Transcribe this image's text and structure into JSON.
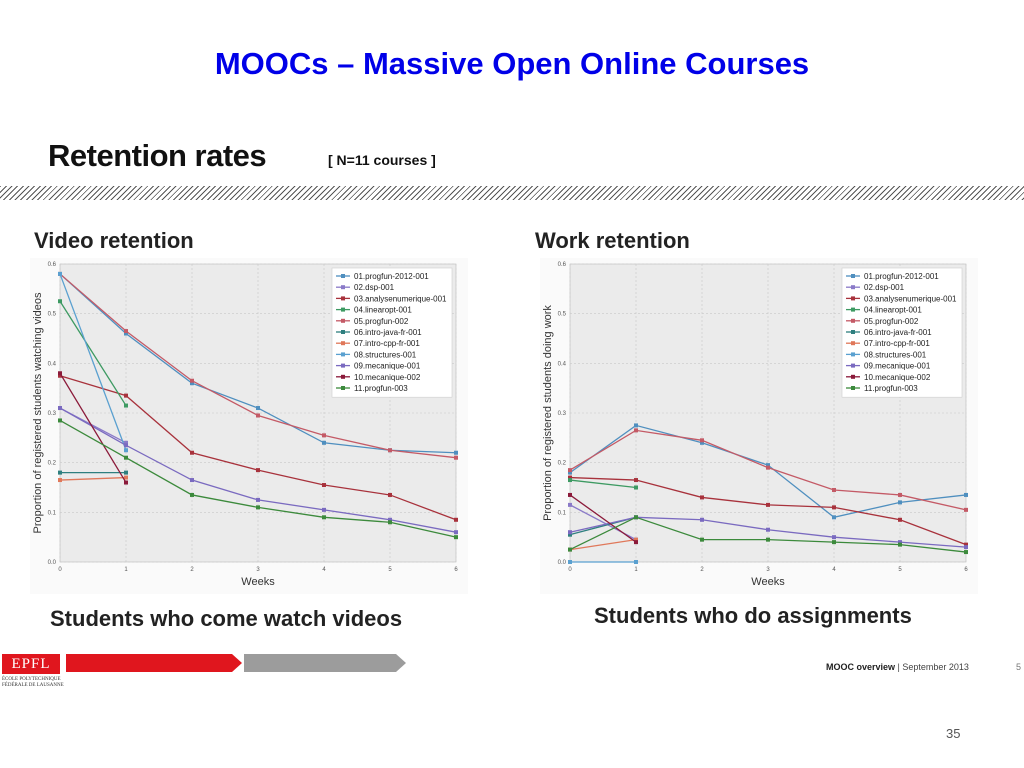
{
  "slide": {
    "title": "MOOCs – Massive Open Online Courses",
    "section_title": "Retention rates",
    "section_subtitle": "[ N=11 courses ]",
    "page_number": "35"
  },
  "footer": {
    "logo_text": "EPFL",
    "logo_line1": "ÉCOLE POLYTECHNIQUE",
    "logo_line2": "FÉDÉRALE DE LAUSANNE",
    "label_bold": "MOOC overview",
    "label_rest": " | September 2013",
    "slide_ref": "5"
  },
  "colors": {
    "title_blue": "#0000e8",
    "epfl_red": "#e0161e",
    "plot_bg": "#ebebeb",
    "grid": "#c8c8c8"
  },
  "chart_data": [
    {
      "type": "line",
      "title": "Video retention",
      "caption": "Students who come watch videos",
      "xlabel": "Weeks",
      "ylabel": "Proportion of registered students watching videos",
      "xlim": [
        0,
        6
      ],
      "ylim": [
        0.0,
        0.6
      ],
      "xticks": [
        "0",
        "1",
        "2",
        "3",
        "4",
        "5",
        "6"
      ],
      "yticks": [
        "0.0",
        "0.1",
        "0.2",
        "0.3",
        "0.4",
        "0.5",
        "0.6"
      ],
      "grid": true,
      "legend_position": "top-right",
      "series": [
        {
          "name": "01.progfun-2012-001",
          "color": "#4f8fbf",
          "x": [
            0,
            1,
            2,
            3,
            4,
            5,
            6
          ],
          "y": [
            0.58,
            0.46,
            0.36,
            0.31,
            0.24,
            0.225,
            0.22
          ]
        },
        {
          "name": "02.dsp-001",
          "color": "#8a7ac8",
          "x": [
            0,
            1
          ],
          "y": [
            0.31,
            0.24
          ]
        },
        {
          "name": "03.analysenumerique-001",
          "color": "#a8323c",
          "x": [
            0,
            1,
            2,
            3,
            4,
            5,
            6
          ],
          "y": [
            0.375,
            0.335,
            0.22,
            0.185,
            0.155,
            0.135,
            0.085
          ]
        },
        {
          "name": "04.linearopt-001",
          "color": "#3d9a62",
          "x": [
            0,
            1
          ],
          "y": [
            0.525,
            0.315
          ]
        },
        {
          "name": "05.progfun-002",
          "color": "#c45a66",
          "x": [
            0,
            1,
            2,
            3,
            4,
            5,
            6
          ],
          "y": [
            0.58,
            0.465,
            0.365,
            0.295,
            0.255,
            0.225,
            0.21
          ]
        },
        {
          "name": "06.intro-java-fr-001",
          "color": "#2f7f7f",
          "x": [
            0,
            1
          ],
          "y": [
            0.18,
            0.18
          ]
        },
        {
          "name": "07.intro-cpp-fr-001",
          "color": "#e0785a",
          "x": [
            0,
            1
          ],
          "y": [
            0.165,
            0.17
          ]
        },
        {
          "name": "08.structures-001",
          "color": "#5aa0d0",
          "x": [
            0,
            1
          ],
          "y": [
            0.58,
            0.225
          ]
        },
        {
          "name": "09.mecanique-001",
          "color": "#7a6ac0",
          "x": [
            0,
            1,
            2,
            3,
            4,
            5,
            6
          ],
          "y": [
            0.31,
            0.235,
            0.165,
            0.125,
            0.105,
            0.085,
            0.06
          ]
        },
        {
          "name": "10.mecanique-002",
          "color": "#8b1a3a",
          "x": [
            0,
            1
          ],
          "y": [
            0.38,
            0.16
          ]
        },
        {
          "name": "11.progfun-003",
          "color": "#3c8a3c",
          "x": [
            0,
            1,
            2,
            3,
            4,
            5,
            6
          ],
          "y": [
            0.285,
            0.21,
            0.135,
            0.11,
            0.09,
            0.08,
            0.05
          ]
        }
      ]
    },
    {
      "type": "line",
      "title": "Work retention",
      "caption": "Students who do assignments",
      "xlabel": "Weeks",
      "ylabel": "Proportion of registered students doing work",
      "xlim": [
        0,
        6
      ],
      "ylim": [
        0.0,
        0.6
      ],
      "xticks": [
        "0",
        "1",
        "2",
        "3",
        "4",
        "5",
        "6"
      ],
      "yticks": [
        "0.0",
        "0.1",
        "0.2",
        "0.3",
        "0.4",
        "0.5",
        "0.6"
      ],
      "grid": true,
      "legend_position": "top-right",
      "series": [
        {
          "name": "01.progfun-2012-001",
          "color": "#4f8fbf",
          "x": [
            0,
            1,
            2,
            3,
            4,
            5,
            6
          ],
          "y": [
            0.18,
            0.275,
            0.24,
            0.195,
            0.09,
            0.12,
            0.135
          ]
        },
        {
          "name": "02.dsp-001",
          "color": "#8a7ac8",
          "x": [
            0,
            1
          ],
          "y": [
            0.115,
            0.045
          ]
        },
        {
          "name": "03.analysenumerique-001",
          "color": "#a8323c",
          "x": [
            0,
            1,
            2,
            3,
            4,
            5,
            6
          ],
          "y": [
            0.17,
            0.165,
            0.13,
            0.115,
            0.11,
            0.085,
            0.035
          ]
        },
        {
          "name": "04.linearopt-001",
          "color": "#3d9a62",
          "x": [
            0,
            1
          ],
          "y": [
            0.165,
            0.15
          ]
        },
        {
          "name": "05.progfun-002",
          "color": "#c45a66",
          "x": [
            0,
            1,
            2,
            3,
            4,
            5,
            6
          ],
          "y": [
            0.185,
            0.265,
            0.245,
            0.19,
            0.145,
            0.135,
            0.105
          ]
        },
        {
          "name": "06.intro-java-fr-001",
          "color": "#2f7f7f",
          "x": [
            0,
            1
          ],
          "y": [
            0.055,
            0.09
          ]
        },
        {
          "name": "07.intro-cpp-fr-001",
          "color": "#e0785a",
          "x": [
            0,
            1
          ],
          "y": [
            0.025,
            0.045
          ]
        },
        {
          "name": "08.structures-001",
          "color": "#5aa0d0",
          "x": [
            0,
            1
          ],
          "y": [
            0.0,
            0.0
          ]
        },
        {
          "name": "09.mecanique-001",
          "color": "#7a6ac0",
          "x": [
            0,
            1,
            2,
            3,
            4,
            5,
            6
          ],
          "y": [
            0.06,
            0.09,
            0.085,
            0.065,
            0.05,
            0.04,
            0.03
          ]
        },
        {
          "name": "10.mecanique-002",
          "color": "#8b1a3a",
          "x": [
            0,
            1
          ],
          "y": [
            0.135,
            0.04
          ]
        },
        {
          "name": "11.progfun-003",
          "color": "#3c8a3c",
          "x": [
            0,
            1,
            2,
            3,
            4,
            5,
            6
          ],
          "y": [
            0.025,
            0.09,
            0.045,
            0.045,
            0.04,
            0.035,
            0.02
          ]
        }
      ]
    }
  ]
}
